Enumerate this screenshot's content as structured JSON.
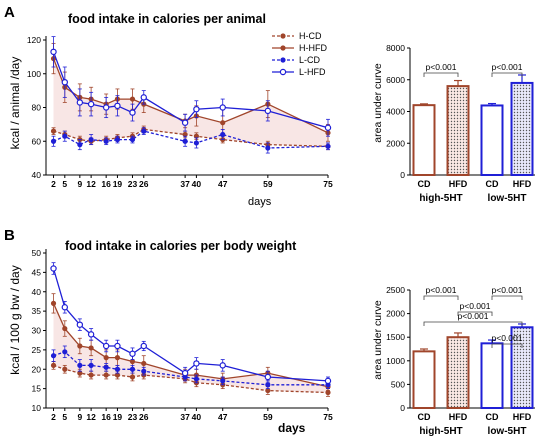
{
  "colors": {
    "H": "#a0452b",
    "L": "#1f1fd6",
    "band": "#f3d2cf",
    "bar_fill_H": "#fbe9e5",
    "bar_fill_L": "#e9e9fb"
  },
  "chart_data": [
    {
      "id": "A-line",
      "type": "line",
      "panel_label": "A",
      "title": "food intake in calories per animal",
      "ylabel": "kcal / animal /day",
      "xlabel": "days",
      "x": [
        2,
        5,
        9,
        12,
        16,
        19,
        23,
        26,
        37,
        40,
        47,
        59,
        75
      ],
      "xlim": [
        0,
        75
      ],
      "ylim": [
        40,
        120
      ],
      "yticks": [
        40,
        60,
        80,
        100,
        120
      ],
      "legend_position": "top-right",
      "series": [
        {
          "name": "H-CD",
          "style": "dashed",
          "marker": "filled",
          "color_key": "H",
          "values": [
            66,
            64,
            61,
            60,
            61,
            62,
            63,
            67,
            64,
            63,
            61,
            58,
            57
          ],
          "err": [
            2,
            2,
            2,
            2,
            2,
            2,
            2,
            2,
            2,
            2,
            2,
            2,
            2
          ]
        },
        {
          "name": "H-HFD",
          "style": "solid",
          "marker": "filled",
          "color_key": "H",
          "values": [
            109,
            92,
            86,
            85,
            82,
            85,
            85,
            82,
            72,
            75,
            71,
            82,
            65
          ],
          "err": [
            9,
            9,
            8,
            7,
            6,
            6,
            6,
            5,
            4,
            6,
            8,
            8,
            5
          ]
        },
        {
          "name": "L-CD",
          "style": "dashed",
          "marker": "filled",
          "color_key": "L",
          "values": [
            60,
            63,
            58,
            61,
            60,
            61,
            61,
            66,
            60,
            59,
            64,
            56,
            57
          ],
          "err": [
            3,
            3,
            3,
            3,
            2,
            2,
            2,
            2,
            3,
            3,
            3,
            3,
            2
          ]
        },
        {
          "name": "L-HFD",
          "style": "solid",
          "marker": "open",
          "color_key": "L",
          "values": [
            113,
            95,
            83,
            82,
            80,
            81,
            77,
            86,
            71,
            79,
            80,
            78,
            68
          ],
          "err": [
            9,
            9,
            8,
            7,
            6,
            6,
            5,
            4,
            5,
            5,
            5,
            6,
            5
          ]
        }
      ]
    },
    {
      "id": "A-bar",
      "type": "bar",
      "ylabel": "area under curve",
      "ylim": [
        0,
        8000
      ],
      "yticks": [
        0,
        2000,
        4000,
        6000,
        8000
      ],
      "categories": [
        "CD",
        "HFD",
        "CD",
        "HFD"
      ],
      "groups": [
        "high-5HT",
        "low-5HT"
      ],
      "values": [
        4400,
        5600,
        4380,
        5800
      ],
      "err": [
        80,
        350,
        120,
        500
      ],
      "significance": [
        {
          "from": 0,
          "to": 1,
          "label": "p<0.001"
        },
        {
          "from": 2,
          "to": 3,
          "label": "p<0.001"
        }
      ]
    },
    {
      "id": "B-line",
      "type": "line",
      "panel_label": "B",
      "title": "food intake in calories per body weight",
      "ylabel": "kcal / 100 g bw / day",
      "xlabel": "days",
      "x": [
        2,
        5,
        9,
        12,
        16,
        19,
        23,
        26,
        37,
        40,
        47,
        59,
        75
      ],
      "xlim": [
        0,
        75
      ],
      "ylim": [
        10,
        50
      ],
      "yticks": [
        10,
        15,
        20,
        25,
        30,
        35,
        40,
        45,
        50
      ],
      "series": [
        {
          "name": "H-CD",
          "style": "dashed",
          "marker": "filled",
          "color_key": "H",
          "values": [
            21,
            20,
            19,
            18.5,
            18.5,
            18.5,
            18,
            18.5,
            17.5,
            16.5,
            16,
            14.5,
            14
          ],
          "err": [
            1,
            1,
            1,
            1,
            1,
            1,
            1,
            1,
            1,
            1,
            1,
            1,
            1
          ]
        },
        {
          "name": "H-HFD",
          "style": "solid",
          "marker": "filled",
          "color_key": "H",
          "values": [
            37,
            30.5,
            26,
            25.5,
            23,
            23,
            22,
            21.5,
            18.5,
            18.5,
            17.5,
            19,
            15.5
          ],
          "err": [
            2.5,
            2,
            2,
            2,
            2,
            2,
            2,
            2,
            1.5,
            1.5,
            1.5,
            1.5,
            1
          ]
        },
        {
          "name": "L-CD",
          "style": "dashed",
          "marker": "filled",
          "color_key": "L",
          "values": [
            23.5,
            24.5,
            21,
            21,
            20.5,
            20,
            20,
            19.5,
            18,
            17.5,
            17,
            16,
            16
          ],
          "err": [
            1.5,
            1.5,
            1.5,
            1.5,
            1,
            1,
            1,
            1,
            1,
            1,
            1,
            1,
            1
          ]
        },
        {
          "name": "L-HFD",
          "style": "solid",
          "marker": "open",
          "color_key": "L",
          "values": [
            46,
            36,
            31.5,
            29,
            26,
            26,
            24,
            26,
            19,
            21.5,
            21,
            18,
            17
          ],
          "err": [
            1.5,
            1.5,
            1.5,
            1.5,
            1.5,
            1.5,
            1.5,
            1.2,
            1.5,
            1.5,
            1.5,
            1.5,
            1
          ]
        }
      ]
    },
    {
      "id": "B-bar",
      "type": "bar",
      "ylabel": "area under curve",
      "ylim": [
        0,
        2500
      ],
      "yticks": [
        0,
        500,
        1000,
        1500,
        2000,
        2500
      ],
      "categories": [
        "CD",
        "HFD",
        "CD",
        "HFD"
      ],
      "groups": [
        "high-5HT",
        "low-5HT"
      ],
      "values": [
        1200,
        1500,
        1370,
        1710
      ],
      "err": [
        50,
        90,
        70,
        70
      ],
      "significance": [
        {
          "from": 0,
          "to": 1,
          "label": "p<0.001",
          "level": 3
        },
        {
          "from": 0,
          "to": 3,
          "label": "p<0.001",
          "level": 2
        },
        {
          "from": 1,
          "to": 2,
          "label": "p<0.001",
          "level": 1
        },
        {
          "from": 2,
          "to": 3,
          "label": "p<0.001",
          "level": 0
        },
        {
          "from": 2,
          "to": 3,
          "label": "p<0.001",
          "level": 3
        }
      ]
    }
  ]
}
